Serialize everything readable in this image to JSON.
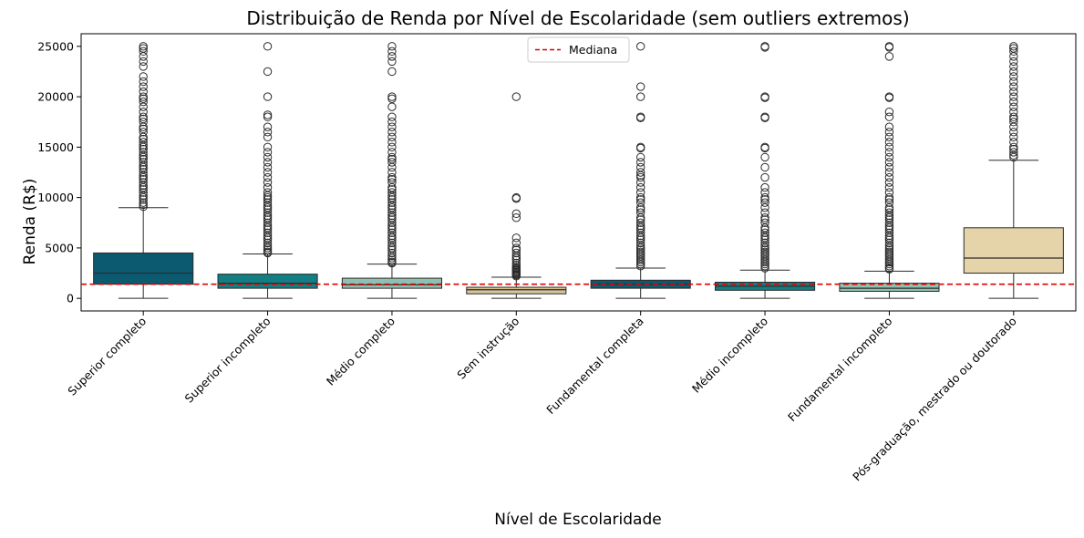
{
  "chart_data": {
    "type": "box",
    "title": "Distribuição de Renda por Nível de Escolaridade (sem outliers extremos)",
    "xlabel": "Nível de Escolaridade",
    "ylabel": "Renda (R$)",
    "ylim": [
      -1250,
      26250
    ],
    "yticks": [
      0,
      5000,
      10000,
      15000,
      20000,
      25000
    ],
    "median_line": {
      "value": 1400,
      "label": "Mediana",
      "color": "#e00000",
      "style": "dashed"
    },
    "legend_position": "top-center",
    "categories": [
      "Superior completo",
      "Superior incompleto",
      "Médio completo",
      "Sem instrução",
      "Fundamental completa",
      "Médio incompleto",
      "Fundamental incompleto",
      "Pós-graduação, mestrado ou doutorado"
    ],
    "boxes": [
      {
        "color": "#0b5a6f",
        "whisker_low": 0,
        "q1": 1400,
        "median": 2500,
        "q3": 4500,
        "whisker_high": 9000,
        "outliers": [
          25000,
          24800,
          24500,
          24000,
          23500,
          23000,
          22000,
          21500,
          21000,
          20500,
          20000,
          19800,
          19500,
          19000,
          18500,
          18000,
          17800,
          17500,
          17000,
          16800,
          16500,
          16000,
          15800,
          15500,
          15200,
          15000,
          14800,
          14500,
          14200,
          14000,
          13800,
          13500,
          13200,
          13000,
          12800,
          12500,
          12200,
          12000,
          11800,
          11500,
          11200,
          11000,
          10800,
          10500,
          10200,
          10000,
          9800,
          9500,
          9300,
          9100
        ]
      },
      {
        "color": "#117f83",
        "whisker_low": 0,
        "q1": 1000,
        "median": 1500,
        "q3": 2400,
        "whisker_high": 4400,
        "outliers": [
          25000,
          22500,
          20000,
          18200,
          18000,
          17000,
          16500,
          16000,
          15000,
          14500,
          14000,
          13500,
          13000,
          12500,
          12000,
          11500,
          11000,
          10500,
          10200,
          10000,
          9800,
          9500,
          9200,
          9000,
          8800,
          8500,
          8200,
          8000,
          7800,
          7500,
          7200,
          7000,
          6800,
          6500,
          6200,
          6000,
          5800,
          5500,
          5200,
          5000,
          4800,
          4600,
          4500
        ]
      },
      {
        "color": "#8fc1b2",
        "whisker_low": 0,
        "q1": 1000,
        "median": 1350,
        "q3": 2000,
        "whisker_high": 3400,
        "outliers": [
          25000,
          24500,
          24000,
          23500,
          22500,
          20000,
          19800,
          19000,
          18000,
          17500,
          17000,
          16500,
          16000,
          15500,
          15000,
          14500,
          14000,
          13800,
          13500,
          13000,
          12500,
          12000,
          11800,
          11500,
          11000,
          10800,
          10500,
          10200,
          10000,
          9800,
          9500,
          9200,
          9000,
          8800,
          8500,
          8200,
          8000,
          7800,
          7500,
          7200,
          7000,
          6800,
          6500,
          6200,
          6000,
          5800,
          5500,
          5200,
          5000,
          4800,
          4500,
          4200,
          4000,
          3800,
          3600,
          3500
        ]
      },
      {
        "color": "#d8c49a",
        "whisker_low": 0,
        "q1": 450,
        "median": 850,
        "q3": 1100,
        "whisker_high": 2100,
        "outliers": [
          20000,
          10000,
          9900,
          8400,
          8000,
          6000,
          5500,
          5000,
          4800,
          4500,
          4200,
          4000,
          3800,
          3500,
          3300,
          3100,
          3000,
          2900,
          2800,
          2700,
          2600,
          2500,
          2400,
          2300,
          2200
        ]
      },
      {
        "color": "#0b5a6f",
        "whisker_low": 0,
        "q1": 1000,
        "median": 1400,
        "q3": 1800,
        "whisker_high": 3000,
        "outliers": [
          25000,
          21000,
          20000,
          18000,
          17900,
          15000,
          14900,
          14000,
          13500,
          13000,
          12500,
          12200,
          12000,
          11500,
          11000,
          10500,
          10000,
          9800,
          9500,
          9000,
          8800,
          8500,
          8000,
          7800,
          7500,
          7200,
          7000,
          6800,
          6500,
          6200,
          6000,
          5800,
          5500,
          5200,
          5000,
          4800,
          4600,
          4400,
          4200,
          4000,
          3800,
          3600,
          3400,
          3200
        ]
      },
      {
        "color": "#117f83",
        "whisker_low": 0,
        "q1": 800,
        "median": 1200,
        "q3": 1600,
        "whisker_high": 2800,
        "outliers": [
          25000,
          24900,
          20000,
          19900,
          18000,
          17900,
          15000,
          14900,
          14000,
          13000,
          12000,
          11000,
          10500,
          10000,
          9800,
          9500,
          9000,
          8500,
          8000,
          7800,
          7500,
          7000,
          6800,
          6500,
          6200,
          6000,
          5800,
          5500,
          5200,
          5000,
          4800,
          4600,
          4400,
          4200,
          4000,
          3800,
          3600,
          3400,
          3200,
          3000
        ]
      },
      {
        "color": "#8fc1b2",
        "whisker_low": 0,
        "q1": 700,
        "median": 1000,
        "q3": 1500,
        "whisker_high": 2700,
        "outliers": [
          25000,
          24900,
          24000,
          20000,
          19900,
          18500,
          18000,
          17000,
          16500,
          16000,
          15500,
          15000,
          14500,
          14000,
          13500,
          13000,
          12500,
          12000,
          11500,
          11000,
          10500,
          10000,
          9800,
          9500,
          9000,
          8800,
          8500,
          8200,
          8000,
          7800,
          7500,
          7200,
          7000,
          6800,
          6500,
          6200,
          6000,
          5800,
          5500,
          5200,
          5000,
          4800,
          4600,
          4400,
          4200,
          4000,
          3800,
          3600,
          3400,
          3200,
          3000,
          2900
        ]
      },
      {
        "color": "#e5d4aa",
        "whisker_low": 0,
        "q1": 2500,
        "median": 4000,
        "q3": 7000,
        "whisker_high": 13700,
        "outliers": [
          25000,
          24800,
          24500,
          24000,
          23500,
          23000,
          22500,
          22000,
          21500,
          21000,
          20500,
          20000,
          19500,
          19000,
          18500,
          18000,
          17800,
          17500,
          17000,
          16500,
          16000,
          15500,
          15000,
          14800,
          14500,
          14200,
          14000
        ]
      }
    ]
  }
}
